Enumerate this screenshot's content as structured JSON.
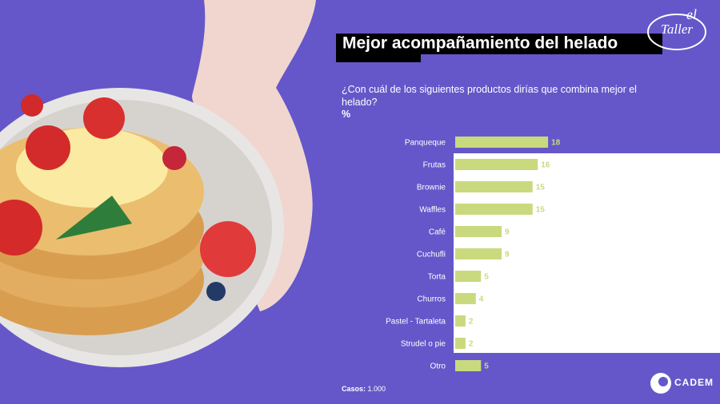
{
  "chart_data": {
    "type": "bar",
    "orientation": "horizontal",
    "title": "Mejor acompañamiento del helado",
    "subtitle": "¿Con cuál de los siguientes productos dirías que combina mejor el helado?",
    "unit": "%",
    "categories": [
      "Panqueque",
      "Frutas",
      "Brownie",
      "Waffles",
      "Café",
      "Cuchufli",
      "Torta",
      "Churros",
      "Pastel - Tartaleta",
      "Strudel o pie",
      "Otro"
    ],
    "values": [
      18,
      16,
      15,
      15,
      9,
      9,
      5,
      4,
      2,
      2,
      5
    ],
    "color": "#c9da7e",
    "footnote_label": "Casos:",
    "footnote_value": "1.000"
  },
  "logos": {
    "taller_main": "el",
    "taller_name": "Taller",
    "cadem": "CADEM"
  }
}
